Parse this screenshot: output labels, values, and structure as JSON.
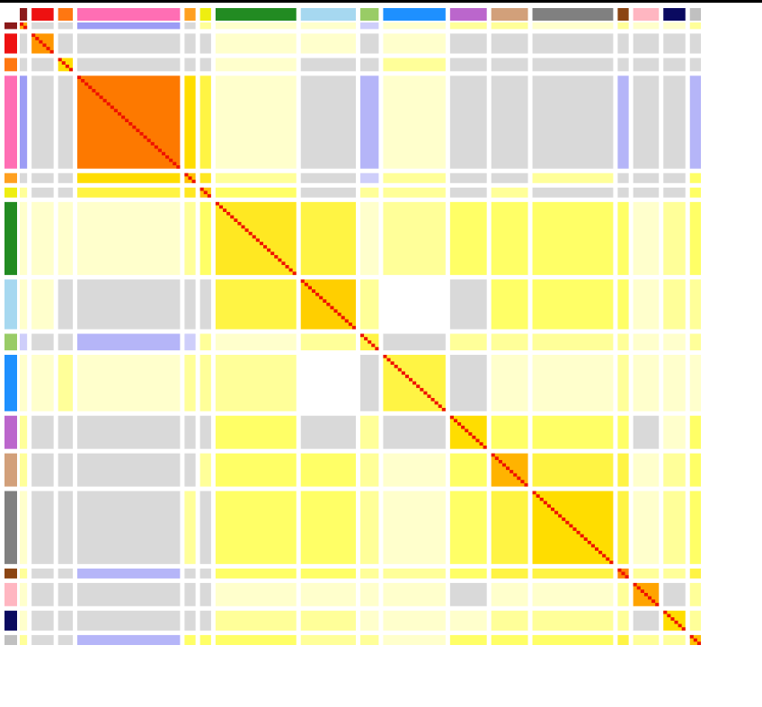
{
  "chart_data": {
    "type": "heatmap",
    "group_colors": [
      "#8b1a1a",
      "#ee1111",
      "#ff7711",
      "#ff6eb4",
      "#ffa020",
      "#eeee11",
      "#228b22",
      "#a6d8f0",
      "#99cc66",
      "#1e90ff",
      "#bb66cc",
      "#d2a07a",
      "#808080",
      "#8b4513",
      "#ffb6c1",
      "#0a0a60",
      "#c0c0c0"
    ],
    "group_sizes": [
      2,
      6,
      4,
      28,
      3,
      3,
      22,
      15,
      5,
      17,
      10,
      10,
      22,
      3,
      7,
      6,
      3
    ],
    "diagonal_value": 1,
    "null_color": "#d9d9d9",
    "color_stops": [
      [
        -0.3,
        "#6b6bf0"
      ],
      [
        0,
        "#ffffff"
      ],
      [
        0.15,
        "#ffff66"
      ],
      [
        0.3,
        "#ffdd00"
      ],
      [
        0.6,
        "#ff8800"
      ],
      [
        1,
        "#ee1100"
      ]
    ],
    "values": [
      [
        0.5,
        null,
        null,
        -0.2,
        null,
        0.1,
        0.05,
        0.05,
        -0.1,
        0.05,
        0.1,
        0.1,
        0.05,
        0.1,
        0.05,
        0.05,
        0.1
      ],
      [
        null,
        0.55,
        null,
        null,
        null,
        null,
        0.05,
        0.05,
        null,
        0.05,
        null,
        null,
        null,
        null,
        null,
        null,
        null
      ],
      [
        null,
        null,
        0.3,
        null,
        null,
        null,
        0.05,
        null,
        null,
        0.1,
        null,
        null,
        null,
        null,
        null,
        null,
        null
      ],
      [
        -0.2,
        null,
        null,
        0.65,
        0.3,
        0.2,
        0.05,
        null,
        -0.15,
        0.05,
        null,
        null,
        null,
        -0.15,
        null,
        null,
        -0.15
      ],
      [
        null,
        null,
        null,
        0.3,
        0.4,
        0.25,
        0.1,
        null,
        -0.1,
        0.1,
        null,
        null,
        0.1,
        null,
        null,
        null,
        0.15
      ],
      [
        0.1,
        null,
        null,
        0.2,
        0.25,
        0.4,
        0.15,
        null,
        0.1,
        0.1,
        null,
        0.1,
        null,
        null,
        null,
        null,
        0.15
      ],
      [
        0.05,
        0.05,
        0.05,
        0.05,
        0.1,
        0.15,
        0.25,
        0.2,
        0.05,
        0.1,
        0.15,
        0.15,
        0.15,
        0.15,
        0.05,
        0.1,
        0.15
      ],
      [
        0.05,
        0.05,
        null,
        null,
        null,
        null,
        0.2,
        0.35,
        0.1,
        0,
        null,
        0.15,
        0.15,
        0.15,
        0.05,
        0.1,
        0.1
      ],
      [
        -0.1,
        null,
        null,
        -0.15,
        -0.1,
        0.1,
        0.05,
        0.1,
        0.2,
        null,
        0.1,
        0.1,
        0.1,
        0.1,
        0.05,
        0.05,
        0.1
      ],
      [
        0.05,
        0.05,
        0.1,
        0.05,
        0.1,
        0.1,
        0.1,
        0,
        null,
        0.2,
        null,
        0.05,
        0.05,
        0.1,
        0.05,
        0.05,
        0.05
      ],
      [
        0.1,
        null,
        null,
        null,
        null,
        null,
        0.15,
        null,
        0.1,
        null,
        0.3,
        0.15,
        0.15,
        0.15,
        null,
        0.05,
        0.15
      ],
      [
        0.1,
        null,
        null,
        null,
        null,
        0.1,
        0.15,
        0.15,
        0.1,
        0.05,
        0.15,
        0.45,
        0.2,
        0.2,
        0.05,
        0.1,
        0.15
      ],
      [
        0.05,
        null,
        null,
        null,
        0.1,
        null,
        0.15,
        0.15,
        0.1,
        0.05,
        0.15,
        0.2,
        0.3,
        0.2,
        0.05,
        0.1,
        0.15
      ],
      [
        0.1,
        null,
        null,
        -0.15,
        null,
        null,
        0.15,
        0.15,
        0.1,
        0.1,
        0.15,
        0.2,
        0.2,
        0.6,
        0.1,
        0.1,
        0.2
      ],
      [
        0.05,
        null,
        null,
        null,
        null,
        null,
        0.05,
        0.05,
        0.05,
        0.05,
        null,
        0.05,
        0.05,
        0.1,
        0.5,
        null,
        0.1
      ],
      [
        0.05,
        null,
        null,
        null,
        null,
        null,
        0.1,
        0.1,
        0.05,
        0.05,
        0.05,
        0.1,
        0.1,
        0.1,
        null,
        0.3,
        0.1
      ],
      [
        0.1,
        null,
        null,
        -0.15,
        0.15,
        0.15,
        0.15,
        0.1,
        0.1,
        0.05,
        0.15,
        0.15,
        0.15,
        0.2,
        0.1,
        0.1,
        0.4
      ]
    ]
  }
}
